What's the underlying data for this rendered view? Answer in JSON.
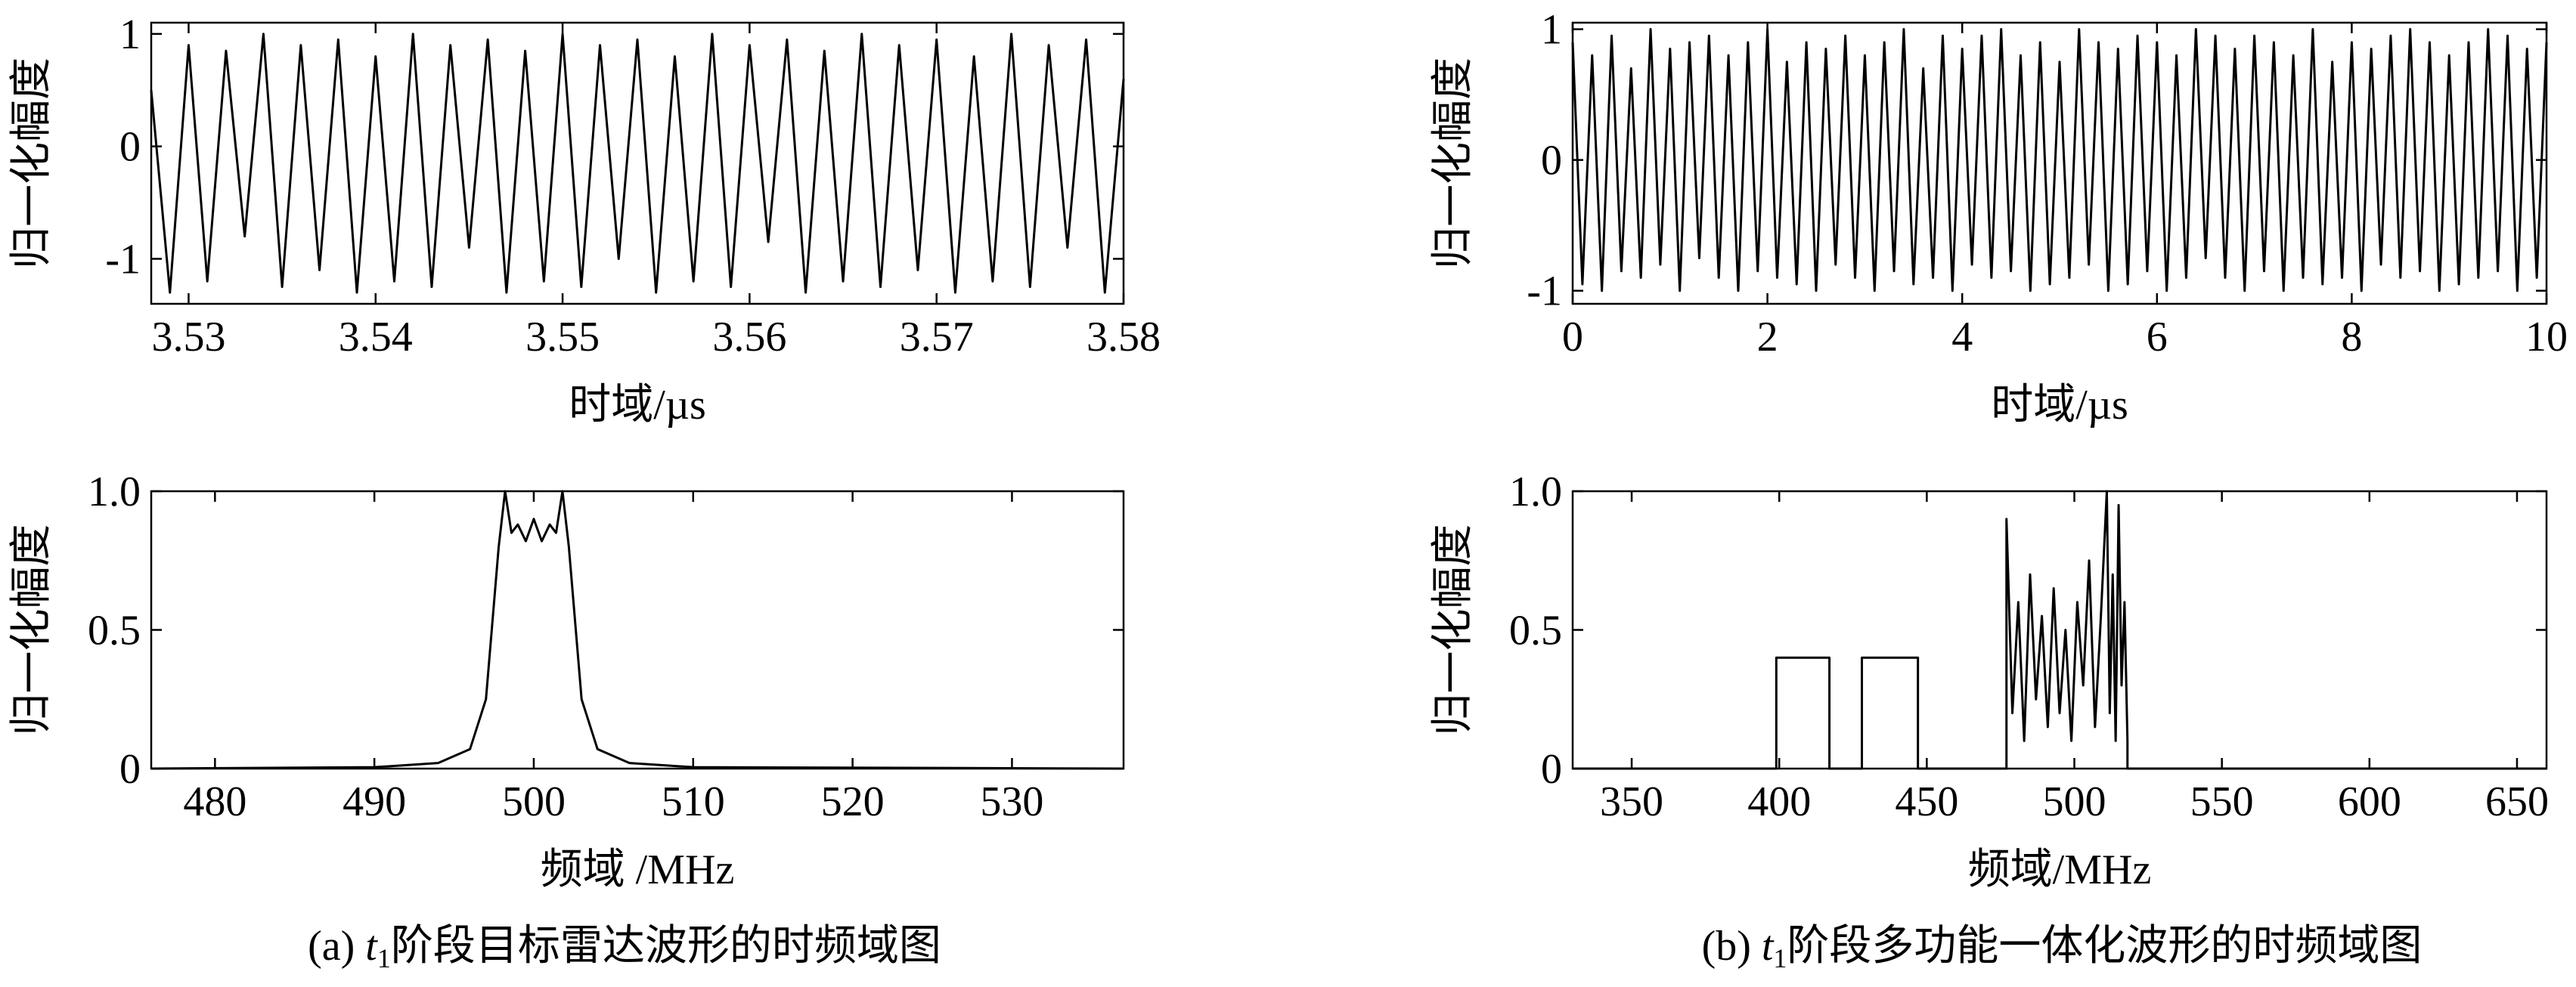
{
  "chart_data": [
    {
      "type": "line",
      "xlabel": "时域/µs",
      "ylabel": "归一化幅度",
      "xlim": [
        3.528,
        3.58
      ],
      "ylim": [
        -1.4,
        1.1
      ],
      "xticks": [
        3.53,
        3.54,
        3.55,
        3.56,
        3.57,
        3.58
      ],
      "yticks": [
        -1,
        0,
        1
      ],
      "x": [
        3.528,
        3.529,
        3.53,
        3.531,
        3.532,
        3.533,
        3.534,
        3.535,
        3.536,
        3.537,
        3.538,
        3.539,
        3.54,
        3.541,
        3.542,
        3.543,
        3.544,
        3.545,
        3.546,
        3.547,
        3.548,
        3.549,
        3.55,
        3.551,
        3.552,
        3.553,
        3.554,
        3.555,
        3.556,
        3.557,
        3.558,
        3.559,
        3.56,
        3.561,
        3.562,
        3.563,
        3.564,
        3.565,
        3.566,
        3.567,
        3.568,
        3.569,
        3.57,
        3.571,
        3.572,
        3.573,
        3.574,
        3.575,
        3.576,
        3.577,
        3.578,
        3.579,
        3.58
      ],
      "series": [
        {
          "color": "#000000",
          "values": [
            0.5,
            -1.3,
            0.9,
            -1.2,
            0.85,
            -0.8,
            1.0,
            -1.25,
            0.9,
            -1.1,
            0.95,
            -1.3,
            0.8,
            -1.2,
            1.0,
            -1.25,
            0.9,
            -0.9,
            0.95,
            -1.3,
            0.85,
            -1.2,
            1.0,
            -1.25,
            0.9,
            -1.0,
            0.95,
            -1.3,
            0.8,
            -1.2,
            1.0,
            -1.25,
            0.9,
            -0.85,
            0.95,
            -1.3,
            0.85,
            -1.2,
            1.0,
            -1.25,
            0.9,
            -1.1,
            0.95,
            -1.3,
            0.8,
            -1.2,
            1.0,
            -1.25,
            0.9,
            -0.9,
            0.95,
            -1.3,
            0.6
          ]
        }
      ]
    },
    {
      "type": "line",
      "xlabel": "频域 /MHz",
      "ylabel": "归一化幅度",
      "xlim": [
        476,
        537
      ],
      "ylim": [
        0,
        1
      ],
      "xticks": [
        480,
        490,
        500,
        510,
        520,
        530
      ],
      "yticks": [
        0,
        0.5,
        {
          "value": 1,
          "label": "1.0"
        }
      ],
      "x": [
        476,
        490,
        494,
        496,
        497,
        497.8,
        498.2,
        498.6,
        499,
        499.5,
        500,
        500.5,
        501,
        501.4,
        501.8,
        502.2,
        503,
        504,
        506,
        510,
        537
      ],
      "series": [
        {
          "color": "#000000",
          "values": [
            0,
            0.005,
            0.02,
            0.07,
            0.25,
            0.8,
            1.0,
            0.85,
            0.88,
            0.82,
            0.9,
            0.82,
            0.88,
            0.85,
            1.0,
            0.8,
            0.25,
            0.07,
            0.02,
            0.005,
            0
          ]
        }
      ]
    },
    {
      "type": "line",
      "xlabel": "时域/µs",
      "ylabel": "归一化幅度",
      "xlim": [
        0,
        10
      ],
      "ylim": [
        -1.1,
        1.05
      ],
      "xticks": [
        0,
        2,
        4,
        6,
        8,
        10
      ],
      "yticks": [
        -1,
        0,
        1
      ],
      "x": [
        0,
        0.1,
        0.2,
        0.3,
        0.4,
        0.5,
        0.6,
        0.7,
        0.8,
        0.9,
        1,
        1.1,
        1.2,
        1.3,
        1.4,
        1.5,
        1.6,
        1.7,
        1.8,
        1.9,
        2,
        2.1,
        2.2,
        2.3,
        2.4,
        2.5,
        2.6,
        2.7,
        2.8,
        2.9,
        3,
        3.1,
        3.2,
        3.3,
        3.4,
        3.5,
        3.6,
        3.7,
        3.8,
        3.9,
        4,
        4.1,
        4.2,
        4.3,
        4.4,
        4.5,
        4.6,
        4.7,
        4.8,
        4.9,
        5,
        5.1,
        5.2,
        5.3,
        5.4,
        5.5,
        5.6,
        5.7,
        5.8,
        5.9,
        6,
        6.1,
        6.2,
        6.3,
        6.4,
        6.5,
        6.6,
        6.7,
        6.8,
        6.9,
        7,
        7.1,
        7.2,
        7.3,
        7.4,
        7.5,
        7.6,
        7.7,
        7.8,
        7.9,
        8,
        8.1,
        8.2,
        8.3,
        8.4,
        8.5,
        8.6,
        8.7,
        8.8,
        8.9,
        9,
        9.1,
        9.2,
        9.3,
        9.4,
        9.5,
        9.6,
        9.7,
        9.8,
        9.9,
        10
      ],
      "series": [
        {
          "color": "#000000",
          "values": [
            0.9,
            -0.95,
            0.8,
            -1.0,
            0.95,
            -0.85,
            0.7,
            -0.9,
            1.0,
            -0.8,
            0.85,
            -1.0,
            0.9,
            -0.75,
            0.95,
            -0.9,
            0.8,
            -1.0,
            0.9,
            -0.85,
            1.0,
            -0.9,
            0.75,
            -0.95,
            0.9,
            -1.0,
            0.85,
            -0.8,
            0.95,
            -0.9,
            0.8,
            -1.0,
            0.9,
            -0.85,
            1.0,
            -0.95,
            0.7,
            -0.9,
            0.95,
            -1.0,
            0.85,
            -0.8,
            0.95,
            -0.9,
            1.0,
            -0.85,
            0.8,
            -1.0,
            0.9,
            -0.95,
            0.75,
            -0.9,
            1.0,
            -0.8,
            0.9,
            -1.0,
            0.85,
            -0.95,
            0.95,
            -0.85,
            0.9,
            -1.0,
            0.8,
            -0.9,
            1.0,
            -0.75,
            0.95,
            -0.9,
            0.85,
            -1.0,
            0.95,
            -0.85,
            0.9,
            -1.0,
            0.8,
            -0.9,
            1.0,
            -0.95,
            0.75,
            -0.9,
            0.9,
            -1.0,
            0.85,
            -0.8,
            0.95,
            -0.9,
            1.0,
            -0.85,
            0.9,
            -1.0,
            0.8,
            -0.95,
            0.9,
            -0.9,
            1.0,
            -0.85,
            0.95,
            -1.0,
            0.85,
            -0.9,
            0.9
          ]
        }
      ]
    },
    {
      "type": "line",
      "xlabel": "频域/MHz",
      "ylabel": "归一化幅度",
      "xlim": [
        330,
        660
      ],
      "ylim": [
        0,
        1
      ],
      "xticks": [
        350,
        400,
        450,
        500,
        550,
        600,
        650
      ],
      "yticks": [
        0,
        0.5,
        {
          "value": 1,
          "label": "1.0"
        }
      ],
      "x": [
        330,
        399,
        399,
        417,
        417,
        428,
        428,
        447,
        447,
        477,
        477,
        479,
        481,
        483,
        485,
        487,
        489,
        491,
        493,
        495,
        497,
        499,
        501,
        503,
        505,
        507,
        509,
        511,
        512,
        513,
        514,
        515,
        516,
        517,
        518,
        518,
        660
      ],
      "series": [
        {
          "color": "#000000",
          "values": [
            0,
            0,
            0.4,
            0.4,
            0,
            0,
            0.4,
            0.4,
            0,
            0,
            0.9,
            0.2,
            0.6,
            0.1,
            0.7,
            0.25,
            0.55,
            0.15,
            0.65,
            0.2,
            0.5,
            0.1,
            0.6,
            0.3,
            0.75,
            0.15,
            0.55,
            1.0,
            0.2,
            0.7,
            0.1,
            0.95,
            0.3,
            0.6,
            0.1,
            0,
            0
          ]
        }
      ]
    }
  ],
  "captions": [
    {
      "label": "(a)",
      "var": "t",
      "sub": "1",
      "text": "阶段目标雷达波形的时频域图"
    },
    {
      "label": "(b)",
      "var": "t",
      "sub": "1",
      "text": "阶段多功能一体化波形的时频域图"
    }
  ]
}
